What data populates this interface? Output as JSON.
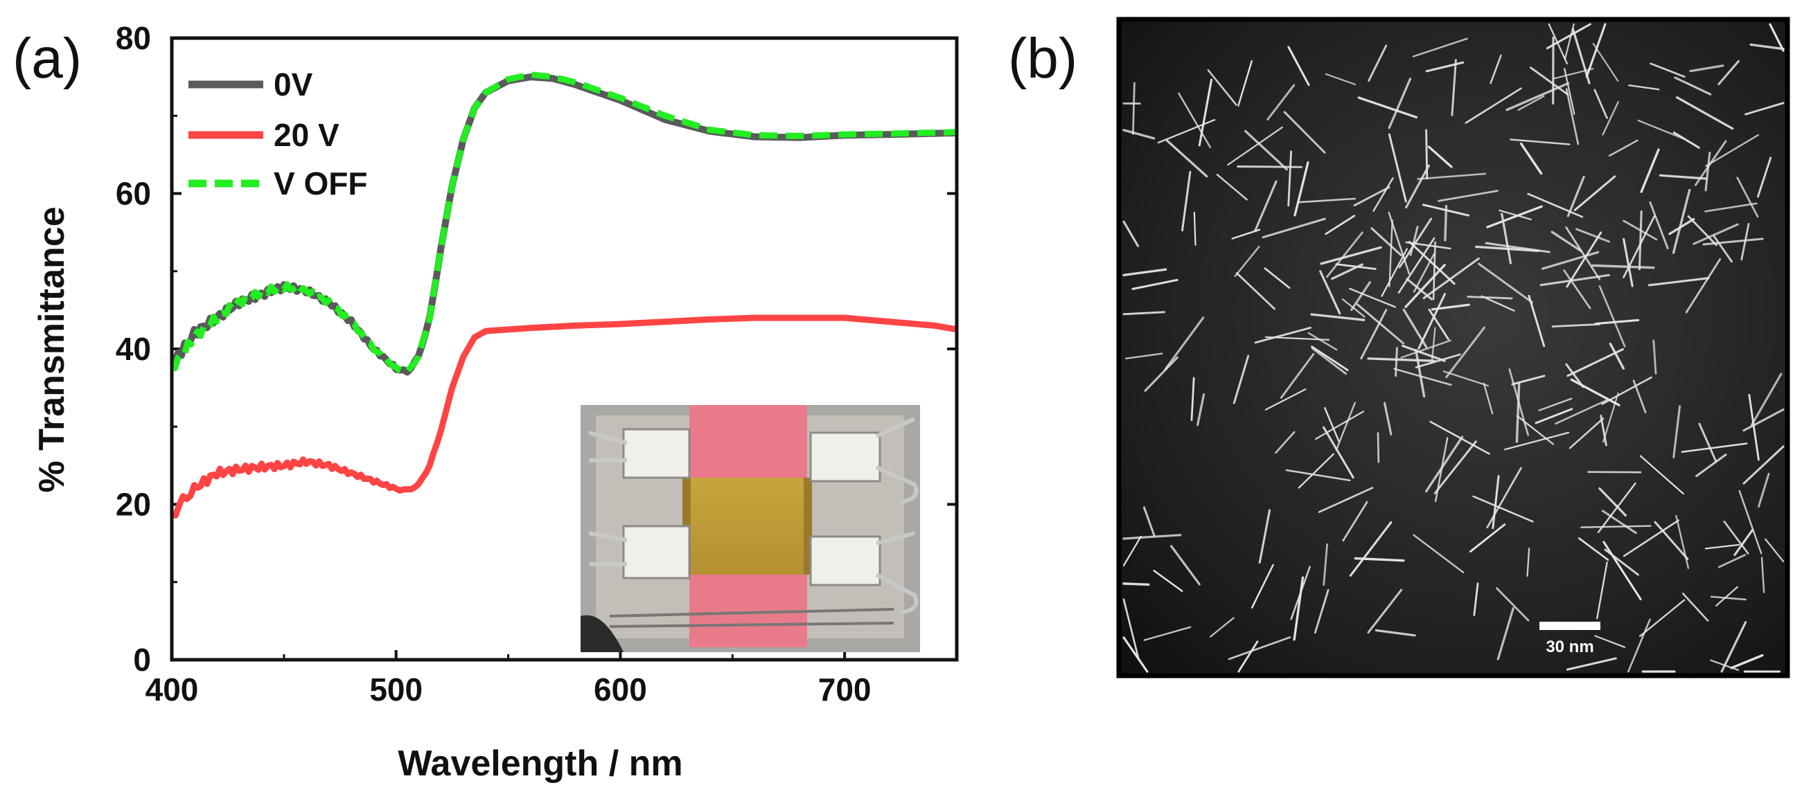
{
  "panel_a": {
    "label": "(a)",
    "inset_photo": "device photo: liquid-crystal cell with gold electrode film held by binder clips"
  },
  "panel_b": {
    "label": "(b)",
    "image": "TEM micrograph of nanorods",
    "scale_bar_label": "30 nm"
  },
  "colors": {
    "series_0V": "#5a5a5a",
    "series_20V": "#ff4444",
    "series_VOFF": "#22ee22"
  },
  "chart_data": {
    "type": "line",
    "title": "",
    "xlabel": "Wavelength / nm",
    "ylabel": "% Transmittance",
    "xlim": [
      400,
      750
    ],
    "ylim": [
      0,
      80
    ],
    "xticks": [
      "400",
      "500",
      "600",
      "700"
    ],
    "yticks": [
      "0",
      "20",
      "40",
      "60",
      "80"
    ],
    "legend_position": "top-left",
    "grid": false,
    "series": [
      {
        "name": "0V",
        "style": "solid",
        "x": [
          400,
          410,
          420,
          430,
          440,
          450,
          460,
          470,
          480,
          490,
          500,
          505,
          510,
          515,
          520,
          525,
          530,
          535,
          540,
          550,
          560,
          570,
          580,
          590,
          600,
          620,
          640,
          660,
          680,
          700,
          720,
          750
        ],
        "y": [
          38,
          42,
          44,
          46,
          47,
          48,
          47.5,
          46,
          43.5,
          40,
          37.5,
          37,
          39,
          44,
          53,
          61,
          67,
          71,
          73,
          74.5,
          75,
          74.8,
          74,
          73,
          72,
          69.5,
          68,
          67.3,
          67.2,
          67.5,
          67.6,
          67.8
        ]
      },
      {
        "name": "20 V",
        "style": "solid",
        "x": [
          400,
          405,
          410,
          420,
          430,
          440,
          450,
          460,
          470,
          480,
          490,
          500,
          505,
          510,
          515,
          520,
          525,
          530,
          535,
          540,
          550,
          560,
          580,
          600,
          620,
          640,
          660,
          680,
          700,
          720,
          740,
          750
        ],
        "y": [
          18.5,
          20.5,
          22,
          24,
          24.5,
          24.8,
          25,
          25.5,
          25,
          24,
          23,
          22,
          21.8,
          22.5,
          25,
          29.5,
          35,
          39,
          41.5,
          42.3,
          42.5,
          42.7,
          43,
          43.2,
          43.5,
          43.8,
          44,
          44,
          44,
          43.5,
          43,
          42.5
        ]
      },
      {
        "name": "V OFF",
        "style": "dashed",
        "x": [
          400,
          410,
          420,
          430,
          440,
          450,
          460,
          470,
          480,
          490,
          500,
          505,
          510,
          515,
          520,
          525,
          530,
          535,
          540,
          550,
          560,
          570,
          580,
          590,
          600,
          620,
          640,
          660,
          680,
          700,
          720,
          750
        ],
        "y": [
          37.5,
          41.5,
          44,
          46,
          47.3,
          48,
          47.5,
          46,
          43.5,
          40,
          37.5,
          37,
          39,
          44,
          53,
          61,
          67,
          71,
          73,
          74.7,
          75.3,
          75,
          74.3,
          73.3,
          72.3,
          70,
          68.2,
          67.5,
          67.4,
          67.6,
          67.7,
          67.9
        ]
      }
    ]
  }
}
